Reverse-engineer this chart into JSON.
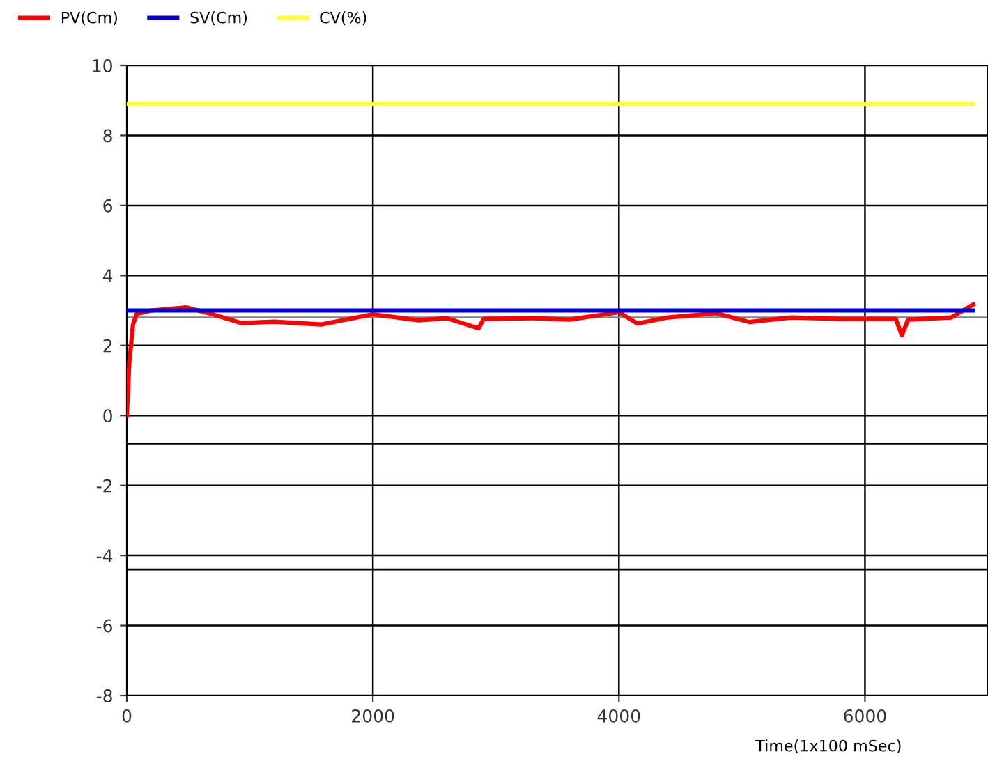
{
  "chart_data": {
    "type": "line",
    "xlabel": "Time(1x100 mSec)",
    "x": [
      0,
      20,
      50,
      80,
      200,
      480,
      700,
      930,
      1200,
      1575,
      1800,
      2000,
      2370,
      2600,
      2860,
      2900,
      3300,
      3600,
      4000,
      4150,
      4400,
      4790,
      5060,
      5400,
      5800,
      6250,
      6300,
      6350,
      6700,
      6880
    ],
    "series": [
      {
        "name": "PV(Cm)",
        "color": "#ff0000",
        "values": [
          0,
          1.5,
          2.6,
          2.9,
          3.0,
          3.09,
          2.89,
          2.64,
          2.68,
          2.6,
          2.75,
          2.89,
          2.72,
          2.78,
          2.49,
          2.76,
          2.78,
          2.74,
          2.95,
          2.63,
          2.8,
          2.92,
          2.67,
          2.8,
          2.76,
          2.76,
          2.29,
          2.74,
          2.8,
          3.17
        ]
      },
      {
        "name": "SV(Cm)",
        "color": "#0000cc",
        "values": [
          3.0,
          3.0,
          3.0,
          3.0,
          3.0,
          3.0,
          3.0,
          3.0,
          3.0,
          3.0,
          3.0,
          3.0,
          3.0,
          3.0,
          3.0,
          3.0,
          3.0,
          3.0,
          3.0,
          3.0,
          3.0,
          3.0,
          3.0,
          3.0,
          3.0,
          3.0,
          3.0,
          3.0,
          3.0,
          3.0
        ]
      },
      {
        "name": "CV(%)",
        "color": "#ffff33",
        "values": [
          8.9,
          8.9,
          8.9,
          8.9,
          8.9,
          8.9,
          8.9,
          8.9,
          8.9,
          8.9,
          8.9,
          8.9,
          8.9,
          8.9,
          8.9,
          8.9,
          8.9,
          8.9,
          8.9,
          8.9,
          8.9,
          8.9,
          8.9,
          8.9,
          8.9,
          8.9,
          8.9,
          8.9,
          8.9,
          8.9
        ]
      }
    ],
    "xlim": [
      0,
      7000
    ],
    "xticks": [
      0,
      2000,
      4000,
      6000
    ],
    "ylim": [
      -8,
      10
    ],
    "yticks": [
      -8,
      -6,
      -4,
      -2,
      0,
      2,
      4,
      6,
      8,
      10
    ],
    "ref_lines": [
      {
        "axis": "y",
        "value": 2.8,
        "color": "#808080"
      },
      {
        "axis": "y",
        "value": -0.8,
        "color": "#000000"
      },
      {
        "axis": "y",
        "value": -4.4,
        "color": "#000000"
      }
    ],
    "grid": true,
    "legend": "top left",
    "marker": "none",
    "line_style": "solid"
  }
}
